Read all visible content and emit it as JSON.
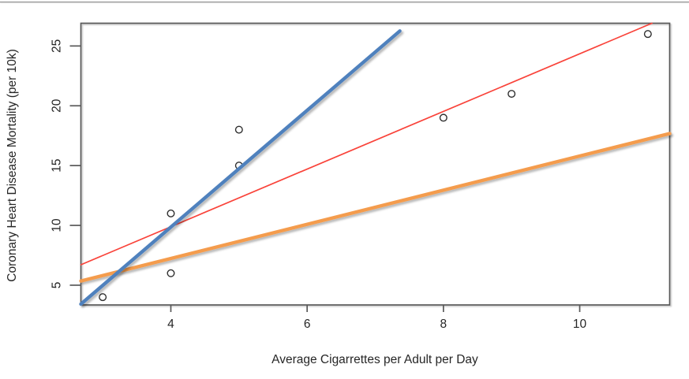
{
  "chart_data": {
    "type": "scatter",
    "title": "",
    "xlabel": "Average Cigarrettes per Adult per Day",
    "ylabel": "Coronary Heart Disease Mortality (per 10k)",
    "xlim": [
      2.68,
      11.32
    ],
    "ylim": [
      3.35,
      26.9
    ],
    "x_ticks": [
      4,
      6,
      8,
      10
    ],
    "y_ticks": [
      5,
      10,
      15,
      20,
      25
    ],
    "grid": false,
    "legend": "none",
    "points": [
      {
        "x": 3,
        "y": 4
      },
      {
        "x": 4,
        "y": 6
      },
      {
        "x": 4,
        "y": 11
      },
      {
        "x": 5,
        "y": 15
      },
      {
        "x": 5,
        "y": 18
      },
      {
        "x": 8,
        "y": 19
      },
      {
        "x": 9,
        "y": 21
      },
      {
        "x": 11,
        "y": 26
      }
    ],
    "point_style": {
      "shape": "open-circle",
      "stroke_color": "#2e2e2e",
      "radius": 4.3
    },
    "lines": [
      {
        "name": "red-regression-line",
        "color": "#f9433a",
        "width": 1.7,
        "shadow": false,
        "from": {
          "x": 2.68,
          "y": 6.71
        },
        "to": {
          "x": 11.06,
          "y": 26.9
        }
      },
      {
        "name": "orange-shallow-line",
        "color": "#f49c4d",
        "width": 4.4,
        "shadow": true,
        "from": {
          "x": 2.68,
          "y": 5.35
        },
        "to": {
          "x": 11.32,
          "y": 17.68
        }
      },
      {
        "name": "blue-steep-line",
        "color": "#4f81bd",
        "width": 4.4,
        "shadow": true,
        "from": {
          "x": 2.68,
          "y": 3.42
        },
        "to": {
          "x": 7.36,
          "y": 26.25
        }
      }
    ],
    "colors": {
      "axis": "#595959",
      "tick_label": "#262626",
      "axis_label": "#262626",
      "background": "#ffffff"
    }
  }
}
